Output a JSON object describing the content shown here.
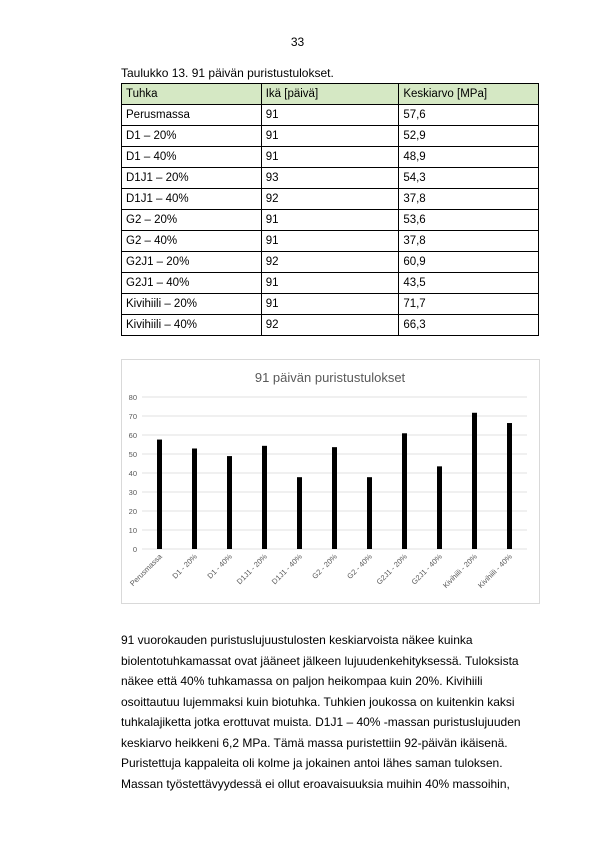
{
  "page": {
    "number": "33",
    "caption": "Taulukko 13. 91 päivän puristustulokset."
  },
  "table": {
    "headers": [
      "Tuhka",
      "Ikä [päivä]",
      "Keskiarvo [MPa]"
    ],
    "rows": [
      [
        "Perusmassa",
        "91",
        "57,6"
      ],
      [
        "D1 – 20%",
        "91",
        "52,9"
      ],
      [
        "D1 – 40%",
        "91",
        "48,9"
      ],
      [
        "D1J1 – 20%",
        "93",
        "54,3"
      ],
      [
        "D1J1 – 40%",
        "92",
        "37,8"
      ],
      [
        "G2 – 20%",
        "91",
        "53,6"
      ],
      [
        "G2 – 40%",
        "91",
        "37,8"
      ],
      [
        "G2J1 – 20%",
        "92",
        "60,9"
      ],
      [
        "G2J1 – 40%",
        "91",
        "43,5"
      ],
      [
        "Kivihiili – 20%",
        "91",
        "71,7"
      ],
      [
        "Kivihiili – 40%",
        "92",
        "66,3"
      ]
    ]
  },
  "chart_data": {
    "type": "bar",
    "title": "91 päivän puristustulokset",
    "categories": [
      "Perusmassa",
      "D1 - 20%",
      "D1 - 40%",
      "D1J1 - 20%",
      "D1J1 - 40%",
      "G2 - 20%",
      "G2 - 40%",
      "G2J1 - 20%",
      "G2J1 - 40%",
      "Kivihiili - 20%",
      "Kivihiili - 40%"
    ],
    "values": [
      57.6,
      52.9,
      48.9,
      54.3,
      37.8,
      53.6,
      37.8,
      60.9,
      43.5,
      71.7,
      66.3
    ],
    "xlabel": "",
    "ylabel": "",
    "ylim": [
      0,
      80
    ],
    "yticks": [
      0,
      10,
      20,
      30,
      40,
      50,
      60,
      70,
      80
    ],
    "grid": true,
    "legend": "none",
    "bar_color": "#000000",
    "grid_color": "#d9d9d9"
  },
  "body_paragraph": [
    "91 vuorokauden puristuslujuustulosten keskiarvoista näkee kuinka",
    "biolentotuhkamassat ovat jääneet jälkeen lujuudenkehityksessä. Tuloksista",
    "näkee että 40% tuhkamassa on paljon heikompaa kuin 20%. Kivihiili",
    "osoittautuu lujemmaksi kuin biotuhka. Tuhkien joukossa on kuitenkin kaksi",
    "tuhkalajiketta jotka erottuvat muista. D1J1 – 40% -massan puristuslujuuden",
    "keskiarvo heikkeni 6,2 MPa. Tämä massa puristettiin 92-päivän ikäisenä.",
    "Puristettuja kappaleita oli kolme ja jokainen antoi lähes saman tuloksen.",
    "Massan työstettävyydessä ei ollut eroavaisuuksia muihin 40% massoihin,"
  ]
}
